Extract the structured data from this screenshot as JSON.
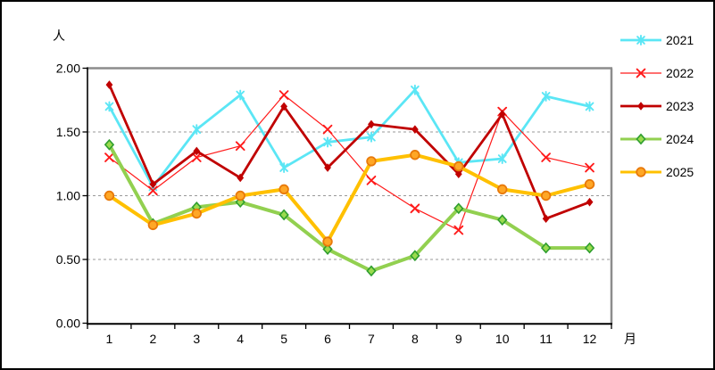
{
  "figure": {
    "background_color": "#ffffff",
    "outer_border_color": "#000000",
    "plot_border_gray": "#8c8c8c",
    "axis_color": "#000000",
    "gridline_color": "#999999"
  },
  "chart_data": {
    "type": "line",
    "title": "",
    "ylabel": "人",
    "xlabel": "月",
    "ylim": [
      0.0,
      2.0
    ],
    "y_ticks": [
      0.0,
      0.5,
      1.0,
      1.5,
      2.0
    ],
    "y_tick_labels": [
      "0.00",
      "0.50",
      "1.00",
      "1.50",
      "2.00"
    ],
    "categories": [
      "1",
      "2",
      "3",
      "4",
      "5",
      "6",
      "7",
      "8",
      "9",
      "10",
      "11",
      "12"
    ],
    "grid": "horizontal dashed at 0.50 / 1.00 / 1.50",
    "legend_position": "right",
    "series": [
      {
        "name": "2021",
        "color": "#5be6f5",
        "marker": "asterisk",
        "marker_fill": "#5be6f5",
        "marker_border": "#5be6f5",
        "line_width": 2.8,
        "values": [
          1.7,
          1.07,
          1.52,
          1.79,
          1.22,
          1.42,
          1.46,
          1.83,
          1.26,
          1.29,
          1.78,
          1.7
        ]
      },
      {
        "name": "2022",
        "color": "#ff1a1a",
        "marker": "x",
        "marker_fill": "#ff1a1a",
        "marker_border": "#ff1a1a",
        "line_width": 1.2,
        "values": [
          1.3,
          1.04,
          1.3,
          1.39,
          1.79,
          1.52,
          1.12,
          0.9,
          0.73,
          1.66,
          1.3,
          1.22
        ]
      },
      {
        "name": "2023",
        "color": "#c00000",
        "marker": "diamond-filled",
        "marker_fill": "#c00000",
        "marker_border": "#c00000",
        "line_width": 2.8,
        "values": [
          1.87,
          1.09,
          1.35,
          1.14,
          1.7,
          1.22,
          1.56,
          1.52,
          1.17,
          1.64,
          0.82,
          0.95
        ]
      },
      {
        "name": "2024",
        "color": "#92d050",
        "marker": "diamond",
        "marker_fill": "#9adb4e",
        "marker_border": "#2f9e2f",
        "line_width": 4,
        "values": [
          1.4,
          0.78,
          0.91,
          0.95,
          0.85,
          0.58,
          0.41,
          0.53,
          0.9,
          0.81,
          0.59,
          0.59
        ]
      },
      {
        "name": "2025",
        "color": "#ffc000",
        "marker": "circle",
        "marker_fill": "#ffa726",
        "marker_border": "#e8790a",
        "line_width": 4,
        "values": [
          1.0,
          0.77,
          0.86,
          1.0,
          1.05,
          0.64,
          1.27,
          1.32,
          1.23,
          1.05,
          1.0,
          1.09
        ]
      }
    ]
  }
}
